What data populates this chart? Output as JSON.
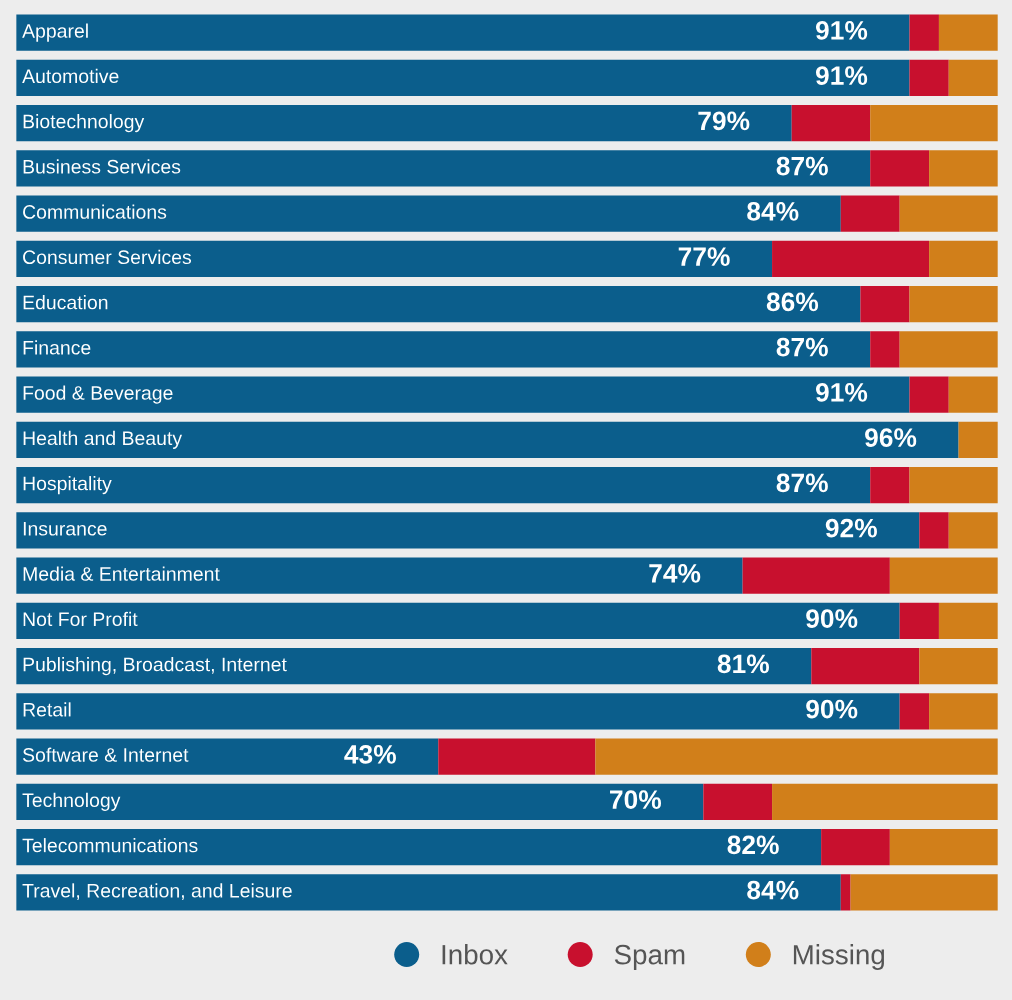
{
  "chart_data": {
    "type": "bar",
    "orientation": "horizontal",
    "stacked": true,
    "legend": "bottom right",
    "xlim": [
      0,
      100
    ],
    "categories": [
      "Apparel",
      "Automotive",
      "Biotechnology",
      "Business Services",
      "Communications",
      "Consumer Services",
      "Education",
      "Finance",
      "Food & Beverage",
      "Health and Beauty",
      "Hospitality",
      "Insurance",
      "Media & Entertainment",
      "Not For Profit",
      "Publishing, Broadcast, Internet",
      "Retail",
      "Software & Internet",
      "Technology",
      "Telecommunications",
      "Travel, Recreation, and Leisure"
    ],
    "series": [
      {
        "name": "Inbox",
        "color": "#0b5e8c",
        "values": [
          91,
          91,
          79,
          87,
          84,
          77,
          86,
          87,
          91,
          96,
          87,
          92,
          74,
          90,
          81,
          90,
          43,
          70,
          82,
          84
        ],
        "value_labels": [
          "91%",
          "91%",
          "79%",
          "87%",
          "84%",
          "77%",
          "86%",
          "87%",
          "91%",
          "96%",
          "87%",
          "92%",
          "74%",
          "90%",
          "81%",
          "90%",
          "43%",
          "70%",
          "82%",
          "84%"
        ]
      },
      {
        "name": "Spam",
        "color": "#c8102e",
        "values": [
          3,
          4,
          8,
          6,
          6,
          16,
          5,
          3,
          4,
          0,
          4,
          3,
          15,
          4,
          11,
          3,
          16,
          7,
          7,
          1
        ]
      },
      {
        "name": "Missing",
        "color": "#d17f1a",
        "values": [
          6,
          5,
          13,
          7,
          10,
          7,
          9,
          10,
          5,
          4,
          9,
          5,
          11,
          6,
          8,
          7,
          41,
          23,
          11,
          15
        ]
      }
    ]
  }
}
